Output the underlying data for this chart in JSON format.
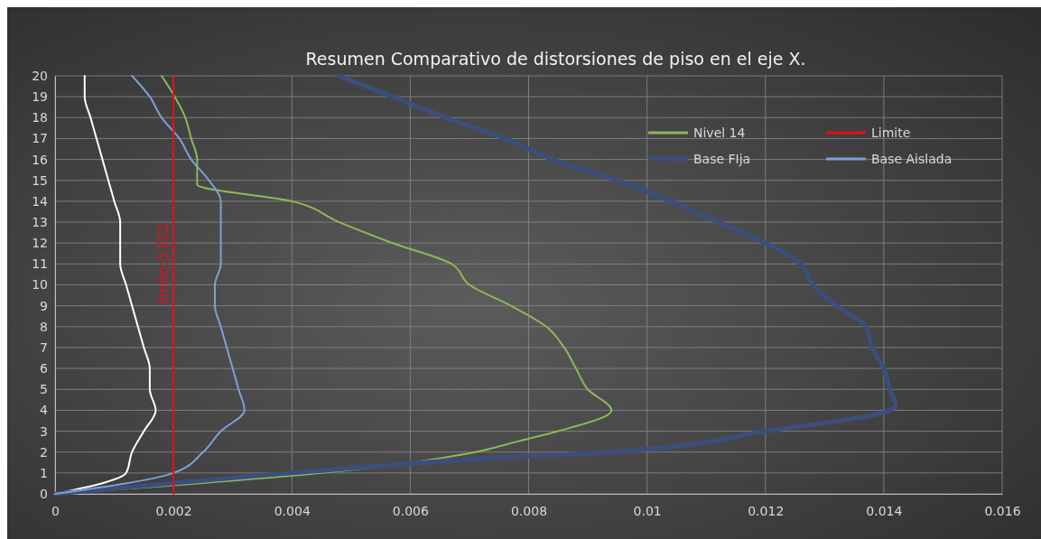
{
  "chart_data": {
    "type": "line",
    "title": "Resumen Comparativo de distorsiones de piso en el eje X.",
    "xlim": [
      0,
      0.016
    ],
    "xticks": [
      0,
      0.002,
      0.004,
      0.006,
      0.008,
      0.01,
      0.012,
      0.014,
      0.016
    ],
    "ylim": [
      0,
      20
    ],
    "yticks": [
      0,
      1,
      2,
      3,
      4,
      5,
      6,
      7,
      8,
      9,
      10,
      11,
      12,
      13,
      14,
      15,
      16,
      17,
      18,
      19,
      20
    ],
    "grid": true,
    "legend": "top right",
    "line_style": "solid",
    "marker": "none",
    "series": [
      {
        "name": "Nivel 14",
        "color": "#8db85a",
        "x": [
          0,
          0.0045,
          0.0071,
          0.0078,
          0.0085,
          0.0094,
          0.009,
          0.0088,
          0.0086,
          0.0083,
          0.0077,
          0.007,
          0.0067,
          0.0057,
          0.0048,
          0.004,
          0.0024,
          0.0024,
          0.0024,
          0.0023,
          0.0022,
          0.0018
        ],
        "values": [
          0,
          1,
          2,
          2.5,
          3,
          4,
          5,
          6,
          7,
          8,
          9,
          10,
          11,
          12,
          13,
          14,
          14.8,
          15,
          16,
          17,
          18,
          20
        ]
      },
      {
        "color": "#ffffff",
        "x": [
          0,
          0.0012,
          0.0013,
          0.0015,
          0.0017,
          0.0016,
          0.0016,
          0.0015,
          0.0014,
          0.0013,
          0.0012,
          0.0011,
          0.0011,
          0.0011,
          0.001,
          0.0009,
          0.0008,
          0.0007,
          0.0006,
          0.0005,
          0.0005
        ],
        "values": [
          0,
          1,
          2,
          3,
          4,
          5,
          6,
          7,
          8,
          9,
          10,
          11,
          12,
          13,
          14,
          15,
          16,
          17,
          18,
          19,
          20
        ]
      },
      {
        "name": "Base FIja",
        "color": "#3c4e7c",
        "x": [
          0,
          0.004,
          0.0076,
          0.0094,
          0.012,
          0.0141,
          0.0142,
          0.0141,
          0.014,
          0.0138,
          0.0137,
          0.0132,
          0.0128,
          0.0126,
          0.012,
          0.0112,
          0.0104,
          0.0095,
          0.0084,
          0.0076,
          0.0066,
          0.0057,
          0.0048
        ],
        "values": [
          0,
          1,
          1.75,
          2,
          3,
          4,
          4.2,
          5,
          6,
          7,
          8,
          9,
          10,
          11,
          12,
          13,
          14,
          15,
          16,
          17,
          18,
          19,
          20
        ]
      },
      {
        "name": "Base Aislada",
        "color": "#7f9fd4",
        "x": [
          0,
          0.002,
          0.0025,
          0.0028,
          0.0032,
          0.0031,
          0.003,
          0.0029,
          0.0028,
          0.0027,
          0.0027,
          0.0028,
          0.0028,
          0.0028,
          0.0028,
          0.0026,
          0.0023,
          0.0021,
          0.0018,
          0.0016,
          0.0013
        ],
        "values": [
          0,
          1,
          2,
          3,
          4,
          5,
          6,
          7,
          8,
          9,
          10,
          11,
          12,
          13,
          14,
          15,
          16,
          17,
          18,
          19,
          20
        ]
      },
      {
        "name": "Limite",
        "color": "#e0101a",
        "x": [
          0.002,
          0.002
        ],
        "values": [
          0,
          20
        ]
      }
    ],
    "annotations": [
      {
        "text": "limite:0.002",
        "x": 0.002,
        "y": 11
      }
    ]
  }
}
